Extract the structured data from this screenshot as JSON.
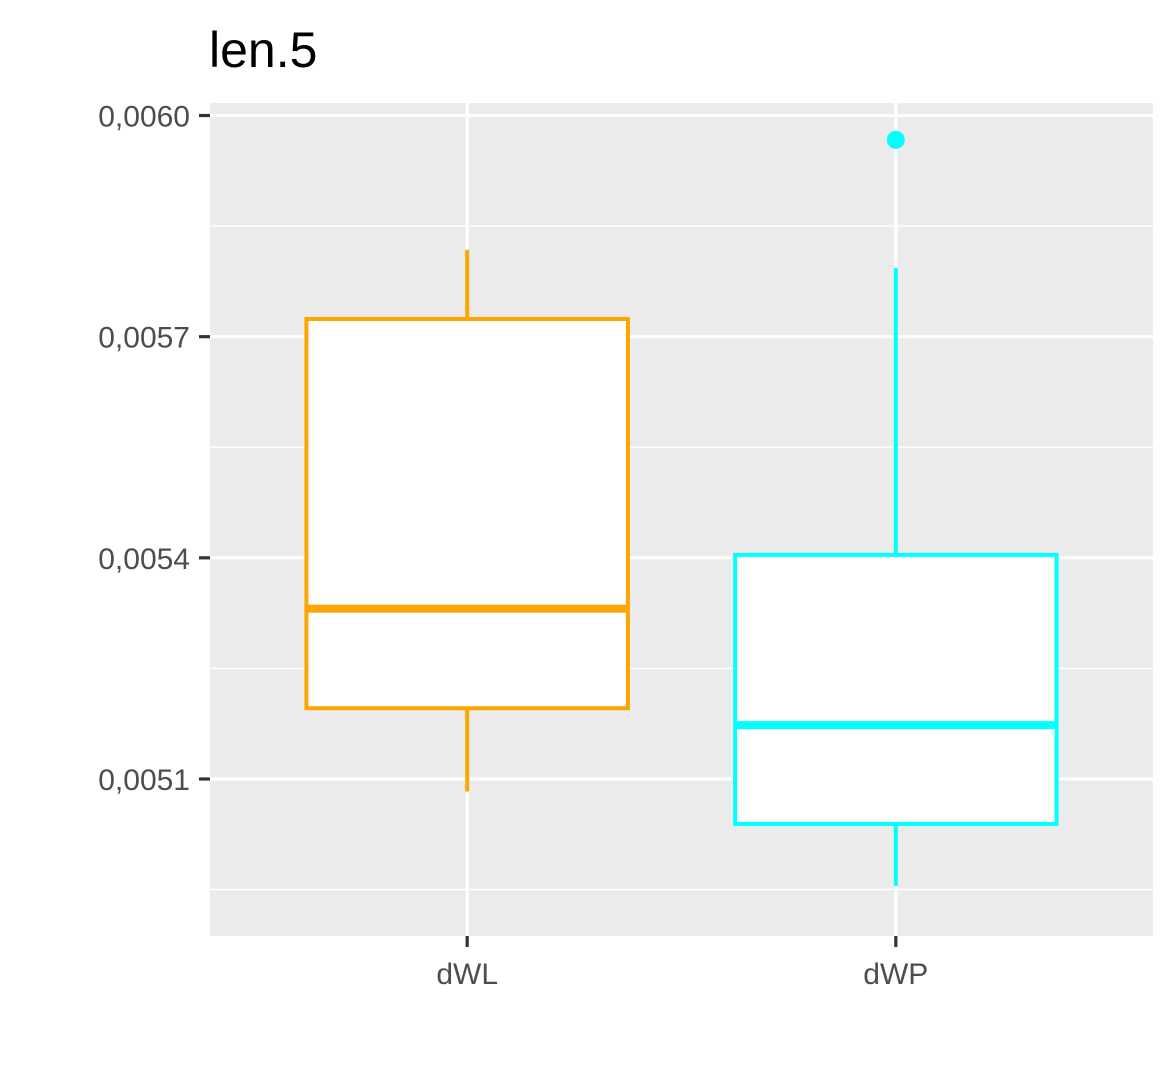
{
  "chart_data": {
    "type": "boxplot",
    "title": "len.5",
    "xlabel": "",
    "ylabel": "",
    "categories": [
      "dWL",
      "dWP"
    ],
    "ylim": [
      0.004887,
      0.006017
    ],
    "y_ticks": [
      {
        "value": 0.0051,
        "label": "0,0051"
      },
      {
        "value": 0.0054,
        "label": "0,0054"
      },
      {
        "value": 0.0057,
        "label": "0,0057"
      },
      {
        "value": 0.006,
        "label": "0,0060"
      }
    ],
    "y_minor_ticks": [
      0.00495,
      0.00525,
      0.00555,
      0.00585
    ],
    "grid": true,
    "legend": "none",
    "panel_background": "#ebebeb",
    "boxes": [
      {
        "category": "dWL",
        "color": "#FFA500",
        "whisker_low": 0.005083,
        "q1": 0.005196,
        "median": 0.005331,
        "q3": 0.005724,
        "whisker_high": 0.005818,
        "outliers": []
      },
      {
        "category": "dWP",
        "color": "#00FFFF",
        "whisker_low": 0.004955,
        "q1": 0.005039,
        "median": 0.005173,
        "q3": 0.005404,
        "whisker_high": 0.005793,
        "outliers": [
          0.005967
        ]
      }
    ]
  }
}
